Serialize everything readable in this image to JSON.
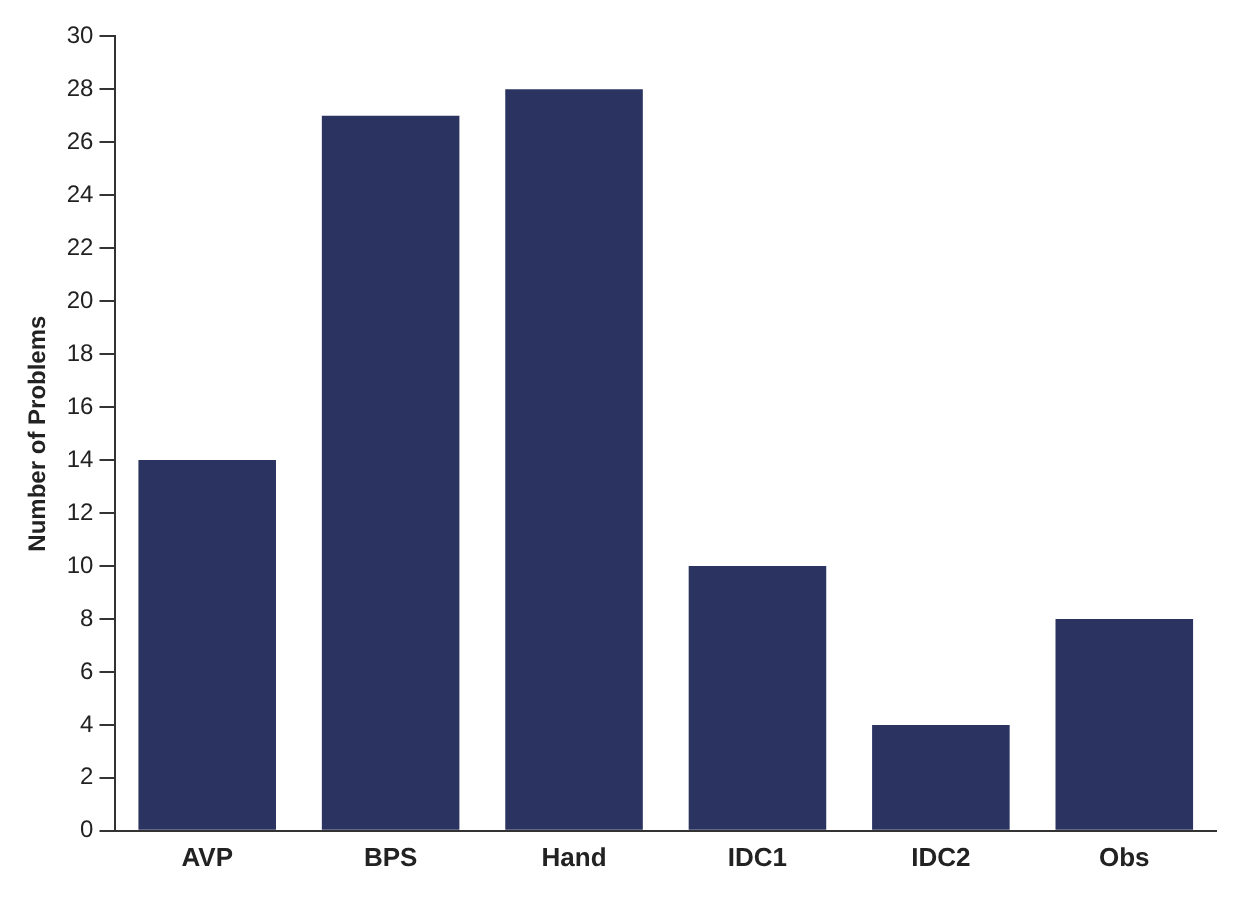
{
  "chart_data": {
    "type": "bar",
    "ylabel": "Number of Problems",
    "categories": [
      "AVP",
      "BPS",
      "Hand",
      "IDC1",
      "IDC2",
      "Obs"
    ],
    "values": [
      14,
      27,
      28,
      10,
      4,
      8
    ],
    "color": "#2b3461",
    "ylim": [
      0,
      30
    ],
    "yticks": [
      0,
      2,
      4,
      6,
      8,
      10,
      12,
      14,
      16,
      18,
      20,
      22,
      24,
      26,
      28,
      30
    ],
    "grid": false,
    "legend": false
  }
}
